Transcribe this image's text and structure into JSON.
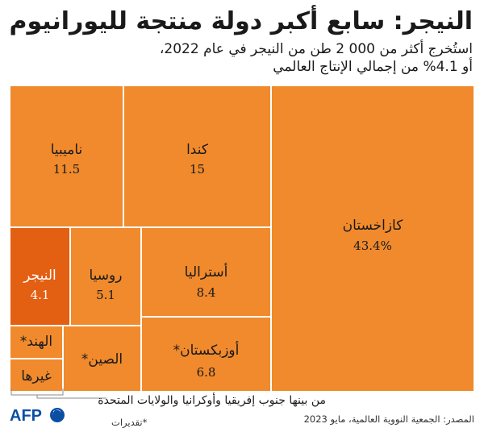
{
  "title": "النيجر: سابع أكبر دولة منتجة لليورانيوم",
  "subtitle_line1": "استُخرج أكثر من 000 2 طن من النيجر في عام 2022،",
  "subtitle_line2": "أو 4.1% من إجمالي الإنتاج العالمي",
  "note": "من بينها جنوب إفريقيا وأوكرانيا والولايات المتحدة",
  "source": "المصدر: الجمعية النووية العالمية، مايو 2023",
  "estimate_note": "*تقديرات",
  "logo": "AFP",
  "colors": {
    "fill": "#f08a2c",
    "highlight": "#e35f12",
    "logo_blue": "#0a4fa3"
  },
  "chart_data": {
    "type": "treemap",
    "unit": "%",
    "items": [
      {
        "name": "كازاخستان",
        "value": 43.4,
        "value_label": "43.4%",
        "highlight": false
      },
      {
        "name": "كندا",
        "value": 15,
        "value_label": "15",
        "highlight": false
      },
      {
        "name": "ناميبيا",
        "value": 11.5,
        "value_label": "11.5",
        "highlight": false
      },
      {
        "name": "أستراليا",
        "value": 8.4,
        "value_label": "8.4",
        "highlight": false
      },
      {
        "name": "أوزبكستان*",
        "value": 6.8,
        "value_label": "6.8",
        "highlight": false
      },
      {
        "name": "روسيا",
        "value": 5.1,
        "value_label": "5.1",
        "highlight": false
      },
      {
        "name": "النيجر",
        "value": 4.1,
        "value_label": "4.1",
        "highlight": true
      },
      {
        "name": "الصين*",
        "value": null,
        "value_label": "",
        "highlight": false
      },
      {
        "name": "الهند*",
        "value": null,
        "value_label": "",
        "highlight": false
      },
      {
        "name": "غيرها",
        "value": null,
        "value_label": "",
        "highlight": false
      }
    ]
  }
}
